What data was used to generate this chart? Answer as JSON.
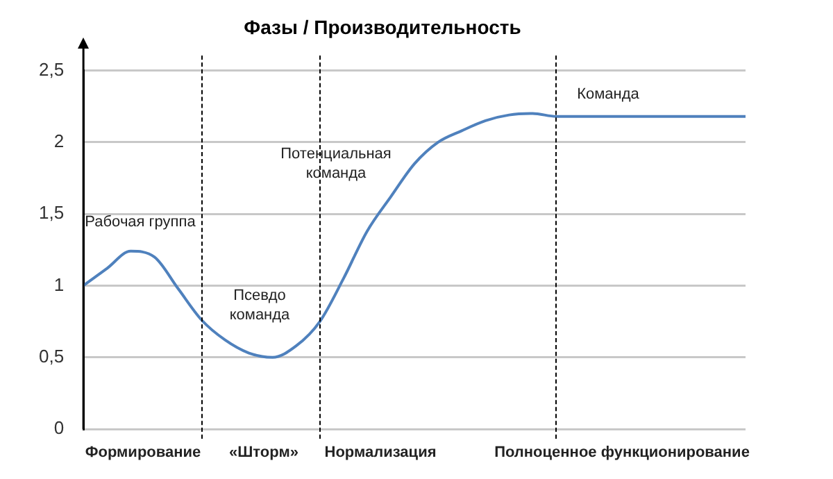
{
  "chart_data": {
    "type": "line",
    "title": "Фазы / Производительность",
    "categories": [
      null,
      null,
      null,
      null,
      null,
      null,
      null,
      null,
      null,
      null,
      null,
      null,
      null,
      null,
      null,
      null,
      null,
      null,
      null,
      null,
      null,
      null,
      null,
      null,
      null,
      null,
      null,
      null,
      null
    ],
    "series": [
      {
        "color": "#4f81bd",
        "values": [
          1.0,
          1.12,
          1.24,
          1.2,
          0.98,
          0.76,
          0.62,
          0.53,
          0.5,
          0.58,
          0.75,
          1.05,
          1.38,
          1.62,
          1.85,
          2.0,
          2.08,
          2.15,
          2.19,
          2.2,
          2.18,
          2.18,
          2.18,
          2.18,
          2.18,
          2.18,
          2.18,
          2.18,
          2.18
        ]
      }
    ],
    "ylim": [
      0,
      2.5
    ],
    "yticks": [
      0,
      {
        "value": 0.5,
        "label": "0,5"
      },
      1,
      {
        "value": 1.5,
        "label": "1,5"
      },
      2,
      {
        "value": 2.5,
        "label": "2,5"
      }
    ],
    "grid": true,
    "legend": false,
    "marker": "none",
    "line_style": "solid",
    "tick_labels": "y",
    "annotations": [
      "Рабочая группа",
      "Псевдо\nкоманда",
      "Потенциальная\nкоманда",
      "Команда",
      "Формирование",
      "«Шторм»",
      "Нормализация",
      "Полноценное функционирование"
    ]
  }
}
